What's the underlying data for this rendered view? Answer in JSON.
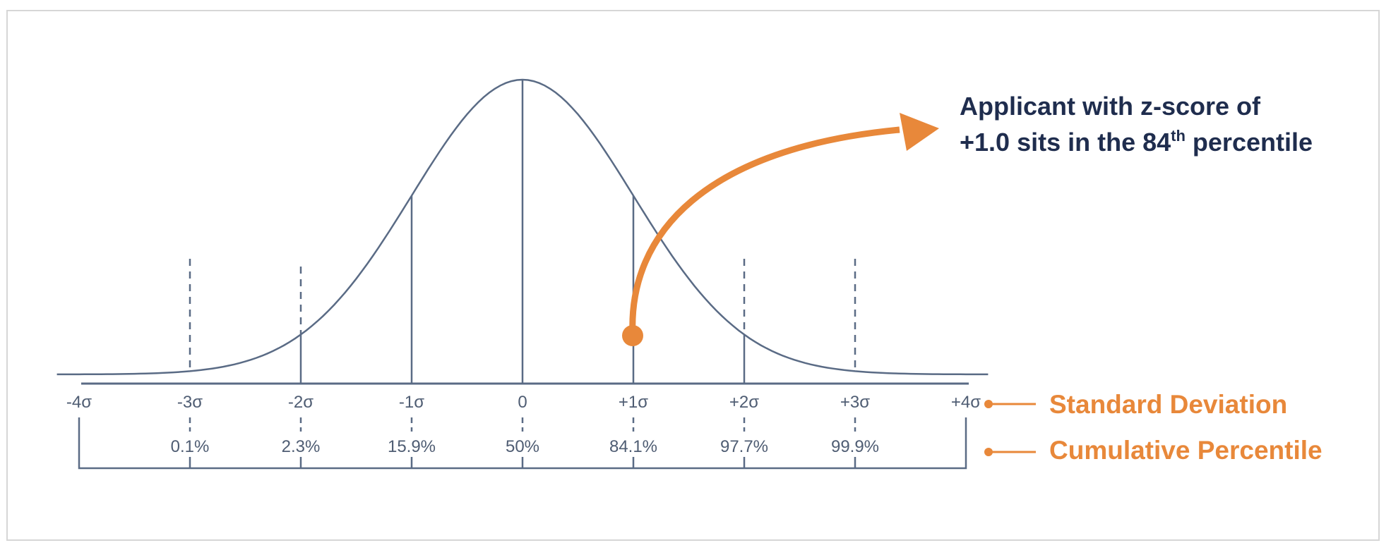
{
  "sd_labels": [
    "-4σ",
    "-3σ",
    "-2σ",
    "-1σ",
    "0",
    "+1σ",
    "+2σ",
    "+3σ",
    "+4σ"
  ],
  "percentiles": [
    "0.1%",
    "2.3%",
    "15.9%",
    "50%",
    "84.1%",
    "97.7%",
    "99.9%"
  ],
  "callout": {
    "line1": "Applicant with z-score of",
    "line2_start": "+1.0 sits in the 84",
    "line2_sup": "th",
    "line2_end": " percentile"
  },
  "legend": [
    "Standard Deviation",
    "Cumulative Percentile"
  ]
}
